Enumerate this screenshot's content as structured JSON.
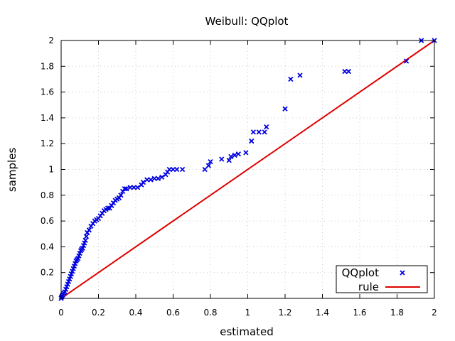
{
  "chart_data": {
    "type": "scatter",
    "title": "Weibull: QQplot",
    "xlabel": "estimated",
    "ylabel": "samples",
    "xlim": [
      0,
      2
    ],
    "ylim": [
      0,
      2
    ],
    "x_ticks": [
      "0",
      "0.2",
      "0.4",
      "0.6",
      "0.8",
      "1",
      "1.2",
      "1.4",
      "1.6",
      "1.8",
      "2"
    ],
    "y_ticks": [
      "0",
      "0.2",
      "0.4",
      "0.6",
      "0.8",
      "1",
      "1.2",
      "1.4",
      "1.6",
      "1.8",
      "2"
    ],
    "grid": true,
    "legend_position": "bottom-right",
    "series": [
      {
        "name": "QQplot",
        "kind": "points",
        "marker": "x",
        "color": "#0000e0",
        "points": [
          [
            0.0,
            0.0
          ],
          [
            0.002,
            0.01
          ],
          [
            0.005,
            0.02
          ],
          [
            0.01,
            0.03
          ],
          [
            0.015,
            0.04
          ],
          [
            0.02,
            0.05
          ],
          [
            0.025,
            0.07
          ],
          [
            0.03,
            0.09
          ],
          [
            0.035,
            0.11
          ],
          [
            0.04,
            0.13
          ],
          [
            0.045,
            0.15
          ],
          [
            0.05,
            0.17
          ],
          [
            0.055,
            0.19
          ],
          [
            0.06,
            0.21
          ],
          [
            0.065,
            0.23
          ],
          [
            0.07,
            0.25
          ],
          [
            0.075,
            0.27
          ],
          [
            0.08,
            0.29
          ],
          [
            0.085,
            0.3
          ],
          [
            0.09,
            0.31
          ],
          [
            0.095,
            0.33
          ],
          [
            0.1,
            0.35
          ],
          [
            0.105,
            0.37
          ],
          [
            0.11,
            0.38
          ],
          [
            0.115,
            0.39
          ],
          [
            0.12,
            0.41
          ],
          [
            0.125,
            0.43
          ],
          [
            0.13,
            0.45
          ],
          [
            0.135,
            0.48
          ],
          [
            0.14,
            0.51
          ],
          [
            0.15,
            0.53
          ],
          [
            0.16,
            0.56
          ],
          [
            0.17,
            0.58
          ],
          [
            0.18,
            0.6
          ],
          [
            0.19,
            0.61
          ],
          [
            0.2,
            0.62
          ],
          [
            0.21,
            0.64
          ],
          [
            0.22,
            0.66
          ],
          [
            0.23,
            0.68
          ],
          [
            0.24,
            0.69
          ],
          [
            0.25,
            0.7
          ],
          [
            0.26,
            0.7
          ],
          [
            0.27,
            0.72
          ],
          [
            0.28,
            0.74
          ],
          [
            0.29,
            0.76
          ],
          [
            0.3,
            0.77
          ],
          [
            0.31,
            0.78
          ],
          [
            0.32,
            0.8
          ],
          [
            0.33,
            0.83
          ],
          [
            0.34,
            0.85
          ],
          [
            0.35,
            0.85
          ],
          [
            0.37,
            0.86
          ],
          [
            0.39,
            0.86
          ],
          [
            0.41,
            0.86
          ],
          [
            0.43,
            0.88
          ],
          [
            0.44,
            0.9
          ],
          [
            0.46,
            0.92
          ],
          [
            0.48,
            0.92
          ],
          [
            0.5,
            0.93
          ],
          [
            0.52,
            0.93
          ],
          [
            0.54,
            0.94
          ],
          [
            0.56,
            0.96
          ],
          [
            0.57,
            0.98
          ],
          [
            0.58,
            1.0
          ],
          [
            0.6,
            1.0
          ],
          [
            0.62,
            1.0
          ],
          [
            0.65,
            1.0
          ],
          [
            0.77,
            1.0
          ],
          [
            0.79,
            1.03
          ],
          [
            0.8,
            1.06
          ],
          [
            0.86,
            1.08
          ],
          [
            0.9,
            1.07
          ],
          [
            0.91,
            1.1
          ],
          [
            0.93,
            1.11
          ],
          [
            0.95,
            1.12
          ],
          [
            0.99,
            1.13
          ],
          [
            1.02,
            1.22
          ],
          [
            1.03,
            1.29
          ],
          [
            1.06,
            1.29
          ],
          [
            1.09,
            1.29
          ],
          [
            1.1,
            1.33
          ],
          [
            1.2,
            1.47
          ],
          [
            1.23,
            1.7
          ],
          [
            1.28,
            1.73
          ],
          [
            1.52,
            1.76
          ],
          [
            1.54,
            1.76
          ],
          [
            1.85,
            1.84
          ],
          [
            1.93,
            2.0
          ],
          [
            2.0,
            2.0
          ]
        ]
      },
      {
        "name": "rule",
        "kind": "line",
        "color": "#e00000",
        "points": [
          [
            0,
            0
          ],
          [
            2,
            2
          ]
        ]
      }
    ]
  }
}
